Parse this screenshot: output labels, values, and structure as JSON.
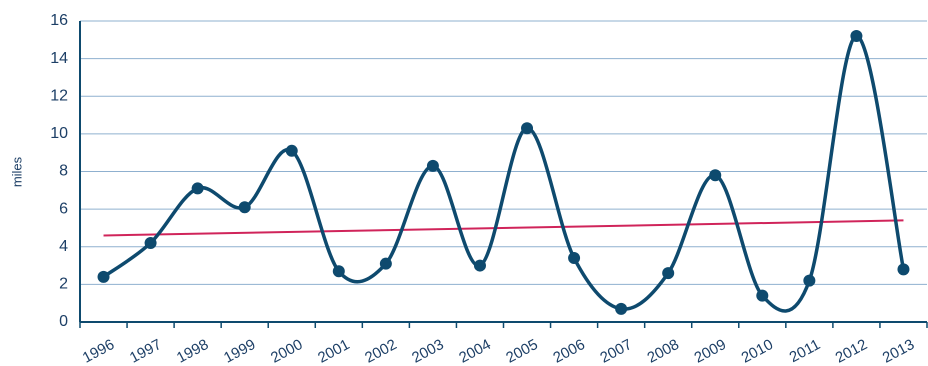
{
  "chart_data": {
    "type": "line",
    "y_label": "miles",
    "categories": [
      "1996",
      "1997",
      "1998",
      "1999",
      "2000",
      "2001",
      "2002",
      "2003",
      "2004",
      "2005",
      "2006",
      "2007",
      "2008",
      "2009",
      "2010",
      "2011",
      "2012",
      "2013"
    ],
    "series": [
      {
        "color": "#0e4a6e",
        "values": [
          2.4,
          4.2,
          7.1,
          6.1,
          9.1,
          2.7,
          3.1,
          8.3,
          3.0,
          10.3,
          3.4,
          0.7,
          2.6,
          7.8,
          1.4,
          2.2,
          15.2,
          2.8
        ]
      }
    ],
    "trendline": {
      "color": "#d0245a",
      "values": [
        4.6,
        5.4
      ]
    },
    "ylim": [
      0,
      16
    ],
    "yticks": [
      0,
      2,
      4,
      6,
      8,
      10,
      12,
      14,
      16
    ],
    "grid": true,
    "smooth": true
  }
}
